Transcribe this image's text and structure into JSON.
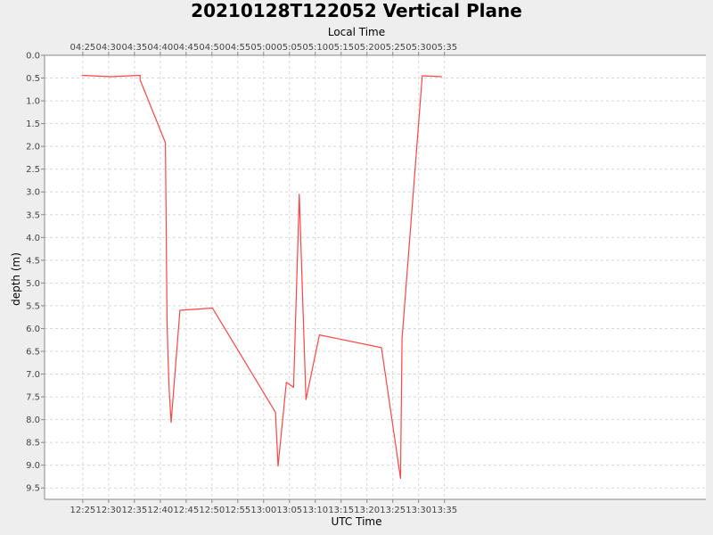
{
  "chart_data": {
    "type": "line",
    "title": "20210128T122052 Vertical Plane",
    "xlabel": "UTC Time",
    "x2label": "Local Time",
    "ylabel": "depth (m)",
    "x_unit": "minutes since 12:00 UTC",
    "x_range": [
      17.6,
      145.6
    ],
    "ylim": [
      0.0,
      9.75
    ],
    "y_inverted": true,
    "grid": true,
    "bottom_ticks": [
      {
        "v": 25,
        "label": "12:25"
      },
      {
        "v": 30,
        "label": "12:30"
      },
      {
        "v": 35,
        "label": "12:35"
      },
      {
        "v": 40,
        "label": "12:40"
      },
      {
        "v": 45,
        "label": "12:45"
      },
      {
        "v": 50,
        "label": "12:50"
      },
      {
        "v": 55,
        "label": "12:55"
      },
      {
        "v": 60,
        "label": "13:00"
      },
      {
        "v": 65,
        "label": "13:05"
      },
      {
        "v": 70,
        "label": "13:10"
      },
      {
        "v": 75,
        "label": "13:15"
      },
      {
        "v": 80,
        "label": "13:20"
      },
      {
        "v": 85,
        "label": "13:25"
      },
      {
        "v": 90,
        "label": "13:30"
      },
      {
        "v": 95,
        "label": "13:35"
      }
    ],
    "top_ticks": [
      {
        "v": 25,
        "label": "04:25"
      },
      {
        "v": 30,
        "label": "04:30"
      },
      {
        "v": 35,
        "label": "04:35"
      },
      {
        "v": 40,
        "label": "04:40"
      },
      {
        "v": 45,
        "label": "04:45"
      },
      {
        "v": 50,
        "label": "04:50"
      },
      {
        "v": 55,
        "label": "04:55"
      },
      {
        "v": 60,
        "label": "05:00"
      },
      {
        "v": 65,
        "label": "05:05"
      },
      {
        "v": 70,
        "label": "05:10"
      },
      {
        "v": 75,
        "label": "05:15"
      },
      {
        "v": 80,
        "label": "05:20"
      },
      {
        "v": 85,
        "label": "05:25"
      },
      {
        "v": 90,
        "label": "05:30"
      },
      {
        "v": 95,
        "label": "05:35"
      }
    ],
    "y_ticks": [
      "0.0",
      "0.5",
      "1.0",
      "1.5",
      "2.0",
      "2.5",
      "3.0",
      "3.5",
      "4.0",
      "4.5",
      "5.0",
      "5.5",
      "6.0",
      "6.5",
      "7.0",
      "7.5",
      "8.0",
      "8.5",
      "9.0",
      "9.5"
    ],
    "series": [
      {
        "color": "#ff4444",
        "x": [
          24.8,
          30.5,
          36.1,
          36.1,
          41.0,
          41.3,
          41.5,
          41.7,
          42.1,
          43.8,
          50.1,
          62.3,
          62.8,
          64.4,
          65.8,
          66.9,
          67.4,
          68.2,
          70.8,
          82.8,
          86.5,
          86.8,
          90.7,
          94.5
        ],
        "y": [
          0.44,
          0.47,
          0.44,
          0.54,
          1.92,
          5.8,
          6.6,
          7.3,
          8.06,
          5.6,
          5.55,
          7.84,
          9.02,
          7.18,
          7.29,
          3.05,
          4.8,
          7.56,
          6.14,
          6.42,
          9.29,
          6.22,
          0.45,
          0.47
        ]
      }
    ]
  }
}
